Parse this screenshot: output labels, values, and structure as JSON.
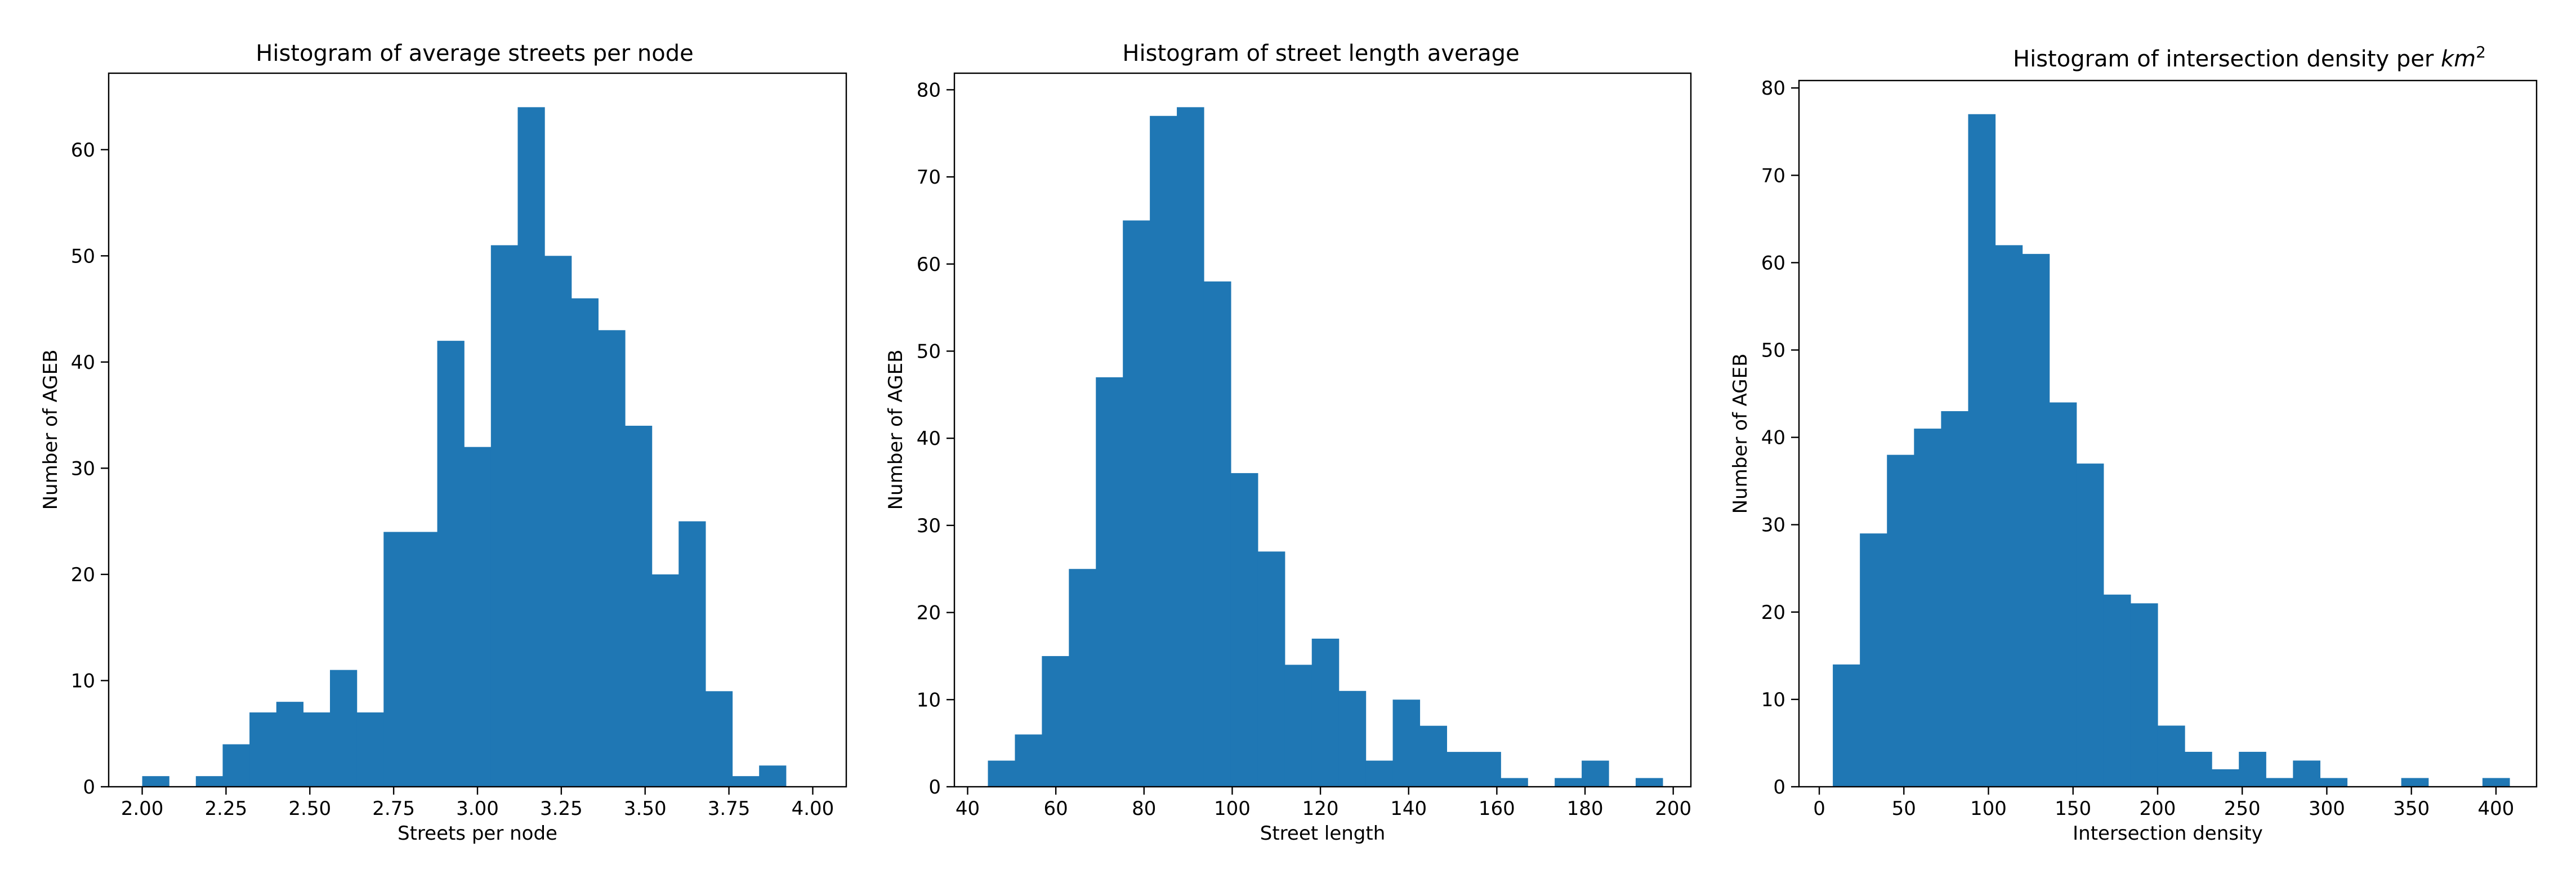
{
  "chart_data": [
    {
      "type": "bar",
      "title": "Histogram of average streets per node",
      "xlabel": "Streets per node",
      "ylabel": "Number of AGEB",
      "xlim": [
        1.9,
        4.1
      ],
      "ylim": [
        0,
        67.2
      ],
      "x_ticks": [
        2.0,
        2.25,
        2.5,
        2.75,
        3.0,
        3.25,
        3.5,
        3.75,
        4.0
      ],
      "x_tick_labels": [
        "2.00",
        "2.25",
        "2.50",
        "2.75",
        "3.00",
        "3.25",
        "3.50",
        "3.75",
        "4.00"
      ],
      "y_ticks": [
        0,
        10,
        20,
        30,
        40,
        50,
        60
      ],
      "y_tick_labels": [
        "0",
        "10",
        "20",
        "30",
        "40",
        "50",
        "60"
      ],
      "bin_edges": [
        2.0,
        2.08,
        2.16,
        2.24,
        2.32,
        2.4,
        2.48,
        2.56,
        2.64,
        2.72,
        2.8,
        2.88,
        2.96,
        3.04,
        3.12,
        3.2,
        3.28,
        3.36,
        3.44,
        3.52,
        3.6,
        3.68,
        3.76,
        3.84,
        3.92,
        4.0
      ],
      "counts": [
        1,
        0,
        1,
        4,
        7,
        8,
        7,
        11,
        7,
        24,
        24,
        42,
        32,
        51,
        64,
        50,
        46,
        43,
        34,
        20,
        25,
        9,
        1,
        2,
        0
      ],
      "color": "#1f77b4"
    },
    {
      "type": "bar",
      "title": "Histogram of street length average",
      "xlabel": "Street length",
      "ylabel": "Number of AGEB",
      "xlim": [
        37,
        204
      ],
      "ylim": [
        0,
        81.9
      ],
      "x_ticks": [
        40,
        60,
        80,
        100,
        120,
        140,
        160,
        180,
        200
      ],
      "x_tick_labels": [
        "40",
        "60",
        "80",
        "100",
        "120",
        "140",
        "160",
        "180",
        "200"
      ],
      "y_ticks": [
        0,
        10,
        20,
        30,
        40,
        50,
        60,
        70,
        80
      ],
      "y_tick_labels": [
        "0",
        "10",
        "20",
        "30",
        "40",
        "50",
        "60",
        "70",
        "80"
      ],
      "bin_edges": [
        44.6,
        50.72,
        56.84,
        62.96,
        69.08,
        75.2,
        81.32,
        87.44,
        93.56,
        99.68,
        105.8,
        111.92,
        118.04,
        124.16,
        130.28,
        136.4,
        142.52,
        148.64,
        154.76,
        160.88,
        167.0,
        173.12,
        179.24,
        185.36,
        191.48,
        197.6
      ],
      "counts": [
        3,
        6,
        15,
        25,
        47,
        65,
        77,
        78,
        58,
        36,
        27,
        14,
        17,
        11,
        3,
        10,
        7,
        4,
        4,
        1,
        0,
        1,
        3,
        0,
        1
      ],
      "color": "#1f77b4"
    },
    {
      "type": "bar",
      "title": "Histogram of intersection density per ",
      "title_math_base": "km",
      "title_math_exp": "2",
      "xlabel": "Intersection density",
      "ylabel": "Number of AGEB",
      "xlim": [
        -12,
        424
      ],
      "ylim": [
        0,
        80.85
      ],
      "x_ticks": [
        0,
        50,
        100,
        150,
        200,
        250,
        300,
        350,
        400
      ],
      "x_tick_labels": [
        "0",
        "50",
        "100",
        "150",
        "200",
        "250",
        "300",
        "350",
        "400"
      ],
      "y_ticks": [
        0,
        10,
        20,
        30,
        40,
        50,
        60,
        70,
        80
      ],
      "y_tick_labels": [
        "0",
        "10",
        "20",
        "30",
        "40",
        "50",
        "60",
        "70",
        "80"
      ],
      "bin_edges": [
        8,
        24,
        40,
        56,
        72,
        88,
        104,
        120,
        136,
        152,
        168,
        184,
        200,
        216,
        232,
        248,
        264,
        280,
        296,
        312,
        328,
        344,
        360,
        376,
        392,
        408
      ],
      "counts": [
        14,
        29,
        38,
        41,
        43,
        77,
        62,
        61,
        44,
        37,
        22,
        21,
        7,
        4,
        2,
        4,
        1,
        3,
        1,
        0,
        0,
        1,
        0,
        0,
        1
      ],
      "color": "#1f77b4"
    }
  ]
}
